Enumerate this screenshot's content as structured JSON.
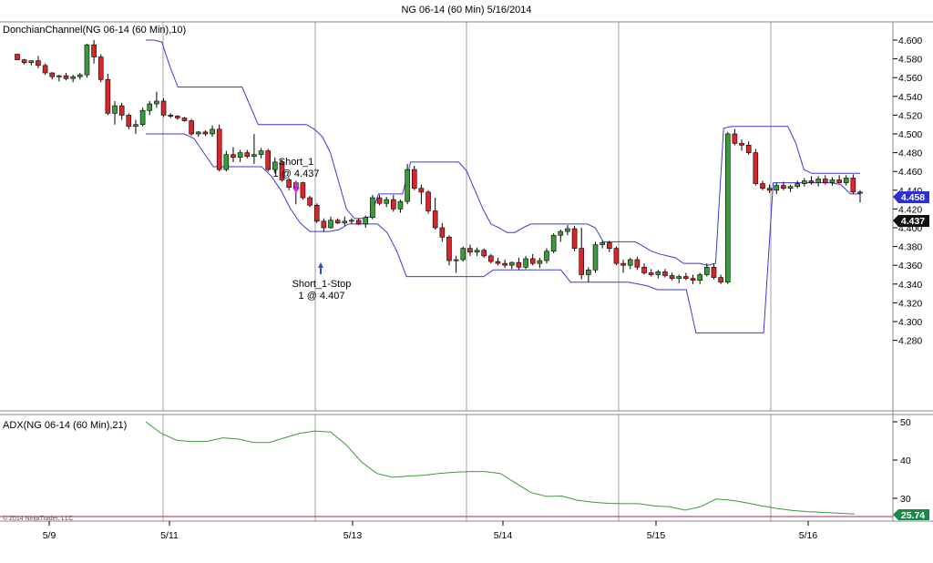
{
  "chart_title": "NG 06-14 (60 Min)  5/16/2014",
  "price_panel_label": "DonchianChannel(NG 06-14 (60 Min),10)",
  "adx_panel_label": "ADX(NG 06-14 (60 Min),21)",
  "copyright": "© 2014 NinjaTrader, LLC",
  "colors": {
    "up_candle": "#3c9a3c",
    "down_candle": "#d8262a",
    "channel": "#3b3bd6",
    "adx_line": "#3c9a3c",
    "adx_ref": "#b0206e",
    "separator": "#888888",
    "grid": "#bbbbbb",
    "badge_channel": "#2f2fd0",
    "badge_price": "#111111",
    "badge_adx": "#1a8a4a",
    "short_arrow": "#e020e0",
    "stop_arrow": "#2a55d8"
  },
  "chart_data": {
    "type": "candlestick",
    "title": "NG 06-14 (60 Min)  5/16/2014",
    "x_tick_labels": [
      "5/9",
      "5/11",
      "5/13",
      "5/14",
      "5/15",
      "5/16"
    ],
    "price_axis": {
      "ylim": [
        4.27,
        4.61
      ],
      "ticks": [
        "4.600",
        "4.580",
        "4.560",
        "4.540",
        "4.520",
        "4.500",
        "4.480",
        "4.460",
        "4.440",
        "4.420",
        "4.400",
        "4.380",
        "4.360",
        "4.340",
        "4.320",
        "4.300",
        "4.280"
      ]
    },
    "candles": [
      [
        4.585,
        4.585,
        4.579,
        4.579
      ],
      [
        4.579,
        4.58,
        4.574,
        4.576
      ],
      [
        4.576,
        4.578,
        4.573,
        4.578
      ],
      [
        4.578,
        4.583,
        4.57,
        4.573
      ],
      [
        4.573,
        4.575,
        4.563,
        4.565
      ],
      [
        4.565,
        4.566,
        4.558,
        4.561
      ],
      [
        4.561,
        4.563,
        4.556,
        4.562
      ],
      [
        4.562,
        4.565,
        4.557,
        4.559
      ],
      [
        4.559,
        4.563,
        4.555,
        4.561
      ],
      [
        4.561,
        4.565,
        4.558,
        4.563
      ],
      [
        4.563,
        4.596,
        4.56,
        4.595
      ],
      [
        4.595,
        4.6,
        4.575,
        4.582
      ],
      [
        4.582,
        4.585,
        4.555,
        4.558
      ],
      [
        4.558,
        4.564,
        4.52,
        4.522
      ],
      [
        4.522,
        4.535,
        4.51,
        4.53
      ],
      [
        4.53,
        4.533,
        4.515,
        4.52
      ],
      [
        4.52,
        4.522,
        4.505,
        4.508
      ],
      [
        4.508,
        4.515,
        4.5,
        4.51
      ],
      [
        4.51,
        4.528,
        4.508,
        4.525
      ],
      [
        4.525,
        4.535,
        4.52,
        4.532
      ],
      [
        4.532,
        4.545,
        4.528,
        4.535
      ],
      [
        4.535,
        4.538,
        4.518,
        4.52
      ],
      [
        4.52,
        4.522,
        4.517,
        4.519
      ],
      [
        4.519,
        4.52,
        4.515,
        4.517
      ],
      [
        4.517,
        4.518,
        4.513,
        4.514
      ],
      [
        4.514,
        4.516,
        4.498,
        4.5
      ],
      [
        4.5,
        4.503,
        4.497,
        4.502
      ],
      [
        4.502,
        4.504,
        4.498,
        4.5
      ],
      [
        4.5,
        4.509,
        4.497,
        4.505
      ],
      [
        4.505,
        4.51,
        4.46,
        4.462
      ],
      [
        4.462,
        4.482,
        4.46,
        4.478
      ],
      [
        4.478,
        4.486,
        4.47,
        4.475
      ],
      [
        4.475,
        4.483,
        4.47,
        4.48
      ],
      [
        4.48,
        4.483,
        4.474,
        4.476
      ],
      [
        4.476,
        4.5,
        4.468,
        4.478
      ],
      [
        4.478,
        4.485,
        4.474,
        4.482
      ],
      [
        4.482,
        4.484,
        4.46,
        4.462
      ],
      [
        4.462,
        4.475,
        4.458,
        4.47
      ],
      [
        4.47,
        4.473,
        4.449,
        4.451
      ],
      [
        4.451,
        4.453,
        4.44,
        4.443
      ],
      [
        4.443,
        4.45,
        4.425,
        4.448
      ],
      [
        4.448,
        4.449,
        4.43,
        4.432
      ],
      [
        4.432,
        4.434,
        4.422,
        4.424
      ],
      [
        4.424,
        4.426,
        4.405,
        4.407
      ],
      [
        4.407,
        4.41,
        4.396,
        4.4
      ],
      [
        4.4,
        4.412,
        4.399,
        4.408
      ],
      [
        4.408,
        4.41,
        4.404,
        4.405
      ],
      [
        4.405,
        4.412,
        4.402,
        4.407
      ],
      [
        4.407,
        4.41,
        4.404,
        4.408
      ],
      [
        4.408,
        4.41,
        4.403,
        4.404
      ],
      [
        4.404,
        4.413,
        4.4,
        4.411
      ],
      [
        4.411,
        4.435,
        4.409,
        4.432
      ],
      [
        4.432,
        4.435,
        4.424,
        4.426
      ],
      [
        4.426,
        4.433,
        4.422,
        4.43
      ],
      [
        4.43,
        4.435,
        4.417,
        4.42
      ],
      [
        4.42,
        4.43,
        4.416,
        4.428
      ],
      [
        4.428,
        4.468,
        4.425,
        4.462
      ],
      [
        4.462,
        4.466,
        4.44,
        4.442
      ],
      [
        4.442,
        4.446,
        4.425,
        4.438
      ],
      [
        4.438,
        4.44,
        4.415,
        4.418
      ],
      [
        4.418,
        4.432,
        4.398,
        4.4
      ],
      [
        4.4,
        4.405,
        4.385,
        4.39
      ],
      [
        4.39,
        4.392,
        4.36,
        4.365
      ],
      [
        4.365,
        4.37,
        4.352,
        4.366
      ],
      [
        4.366,
        4.38,
        4.364,
        4.378
      ],
      [
        4.378,
        4.382,
        4.37,
        4.374
      ],
      [
        4.374,
        4.379,
        4.37,
        4.376
      ],
      [
        4.376,
        4.378,
        4.368,
        4.37
      ],
      [
        4.37,
        4.372,
        4.362,
        4.364
      ],
      [
        4.364,
        4.368,
        4.36,
        4.362
      ],
      [
        4.362,
        4.366,
        4.357,
        4.36
      ],
      [
        4.36,
        4.364,
        4.356,
        4.363
      ],
      [
        4.363,
        4.368,
        4.355,
        4.358
      ],
      [
        4.358,
        4.37,
        4.356,
        4.367
      ],
      [
        4.367,
        4.372,
        4.36,
        4.362
      ],
      [
        4.362,
        4.368,
        4.357,
        4.365
      ],
      [
        4.365,
        4.378,
        4.362,
        4.375
      ],
      [
        4.375,
        4.394,
        4.373,
        4.392
      ],
      [
        4.392,
        4.398,
        4.385,
        4.396
      ],
      [
        4.396,
        4.403,
        4.392,
        4.399
      ],
      [
        4.399,
        4.402,
        4.375,
        4.378
      ],
      [
        4.378,
        4.4,
        4.345,
        4.35
      ],
      [
        4.35,
        4.358,
        4.342,
        4.355
      ],
      [
        4.355,
        4.385,
        4.352,
        4.382
      ],
      [
        4.382,
        4.386,
        4.378,
        4.384
      ],
      [
        4.384,
        4.386,
        4.374,
        4.378
      ],
      [
        4.378,
        4.38,
        4.36,
        4.362
      ],
      [
        4.362,
        4.366,
        4.352,
        4.36
      ],
      [
        4.36,
        4.368,
        4.356,
        4.366
      ],
      [
        4.366,
        4.369,
        4.355,
        4.358
      ],
      [
        4.358,
        4.362,
        4.35,
        4.352
      ],
      [
        4.352,
        4.356,
        4.348,
        4.35
      ],
      [
        4.35,
        4.355,
        4.346,
        4.353
      ],
      [
        4.353,
        4.356,
        4.347,
        4.349
      ],
      [
        4.349,
        4.352,
        4.344,
        4.346
      ],
      [
        4.346,
        4.35,
        4.341,
        4.348
      ],
      [
        4.348,
        4.352,
        4.344,
        4.346
      ],
      [
        4.346,
        4.35,
        4.34,
        4.344
      ],
      [
        4.344,
        4.352,
        4.34,
        4.35
      ],
      [
        4.35,
        4.362,
        4.348,
        4.358
      ],
      [
        4.358,
        4.362,
        4.345,
        4.347
      ],
      [
        4.347,
        4.35,
        4.34,
        4.342
      ],
      [
        4.342,
        4.502,
        4.34,
        4.5
      ],
      [
        4.5,
        4.505,
        4.488,
        4.49
      ],
      [
        4.49,
        4.494,
        4.482,
        4.488
      ],
      [
        4.488,
        4.492,
        4.478,
        4.48
      ],
      [
        4.48,
        4.484,
        4.445,
        4.447
      ],
      [
        4.447,
        4.45,
        4.44,
        4.442
      ],
      [
        4.442,
        4.446,
        4.437,
        4.44
      ],
      [
        4.44,
        4.448,
        4.436,
        4.445
      ],
      [
        4.445,
        4.449,
        4.44,
        4.442
      ],
      [
        4.442,
        4.446,
        4.438,
        4.444
      ],
      [
        4.444,
        4.45,
        4.442,
        4.447
      ],
      [
        4.447,
        4.453,
        4.444,
        4.45
      ],
      [
        4.45,
        4.455,
        4.446,
        4.448
      ],
      [
        4.448,
        4.455,
        4.444,
        4.452
      ],
      [
        4.452,
        4.456,
        4.446,
        4.448
      ],
      [
        4.448,
        4.454,
        4.445,
        4.451
      ],
      [
        4.451,
        4.456,
        4.447,
        4.448
      ],
      [
        4.448,
        4.456,
        4.445,
        4.453
      ],
      [
        4.453,
        4.457,
        4.436,
        4.438
      ],
      [
        4.438,
        4.44,
        4.427,
        4.437
      ]
    ],
    "donchian_upper": [
      4.6,
      4.6,
      4.598,
      4.572,
      4.55,
      4.55,
      4.55,
      4.55,
      4.55,
      4.55,
      4.55,
      4.55,
      4.55,
      4.53,
      4.51,
      4.51,
      4.51,
      4.51,
      4.51,
      4.51,
      4.51,
      4.505,
      4.497,
      4.48,
      4.45,
      4.42,
      4.41,
      4.41,
      4.412,
      4.436,
      4.436,
      4.436,
      4.436,
      4.47,
      4.47,
      4.47,
      4.47,
      4.47,
      4.47,
      4.47,
      4.46,
      4.44,
      4.42,
      4.404,
      4.4,
      4.395,
      4.395,
      4.4,
      4.404,
      4.404,
      4.404,
      4.404,
      4.404,
      4.404,
      4.404,
      4.404,
      4.4,
      4.385,
      4.385,
      4.385,
      4.385,
      4.385,
      4.38,
      4.375,
      4.372,
      4.37,
      4.368,
      4.362,
      4.362,
      4.362,
      4.36,
      4.362,
      4.506,
      4.508,
      4.508,
      4.508,
      4.508,
      4.508,
      4.508,
      4.508,
      4.508,
      4.49,
      4.462,
      4.458,
      4.458,
      4.458,
      4.458,
      4.458,
      4.458,
      4.458
    ],
    "donchian_lower": [
      4.5,
      4.5,
      4.5,
      4.5,
      4.5,
      4.495,
      4.48,
      4.465,
      4.465,
      4.465,
      4.465,
      4.465,
      4.465,
      4.455,
      4.44,
      4.42,
      4.405,
      4.396,
      4.396,
      4.396,
      4.398,
      4.404,
      4.404,
      4.404,
      4.404,
      4.395,
      4.375,
      4.348,
      4.348,
      4.348,
      4.348,
      4.348,
      4.348,
      4.348,
      4.348,
      4.348,
      4.355,
      4.355,
      4.355,
      4.355,
      4.355,
      4.355,
      4.355,
      4.355,
      4.342,
      4.342,
      4.342,
      4.342,
      4.342,
      4.342,
      4.342,
      4.34,
      4.338,
      4.334,
      4.334,
      4.334,
      4.334,
      4.288,
      4.288,
      4.288,
      4.288,
      4.288,
      4.288,
      4.288,
      4.288,
      4.448,
      4.448,
      4.448,
      4.448,
      4.448,
      4.448,
      4.448,
      4.446,
      4.436,
      4.436
    ],
    "annotations": {
      "short_entry": {
        "label": "Short_1",
        "detail": "1 @ 4.437",
        "price": 4.437
      },
      "stop_exit": {
        "label": "Short_1-Stop",
        "detail": "1 @ 4.407",
        "price": 4.407
      }
    },
    "price_badges": {
      "channel_upper": "4.458",
      "last_price": "4.437"
    },
    "adx": {
      "ylim": [
        24,
        52
      ],
      "ticks": [
        "50",
        "40",
        "30"
      ],
      "reference_level": 25.74,
      "badge": "25.74",
      "values": [
        50.0,
        47.0,
        45.2,
        44.8,
        44.9,
        45.8,
        45.5,
        44.6,
        44.6,
        45.8,
        47.0,
        47.6,
        47.3,
        44.0,
        39.5,
        36.5,
        35.5,
        35.8,
        36.0,
        36.5,
        36.8,
        37.0,
        37.0,
        36.5,
        34.0,
        31.5,
        30.5,
        30.6,
        29.5,
        29.0,
        28.7,
        28.6,
        28.6,
        28.0,
        27.8,
        26.9,
        27.8,
        29.8,
        29.5,
        28.8,
        28.0,
        27.3,
        26.8,
        26.5,
        26.3,
        26.1,
        25.9
      ]
    }
  }
}
